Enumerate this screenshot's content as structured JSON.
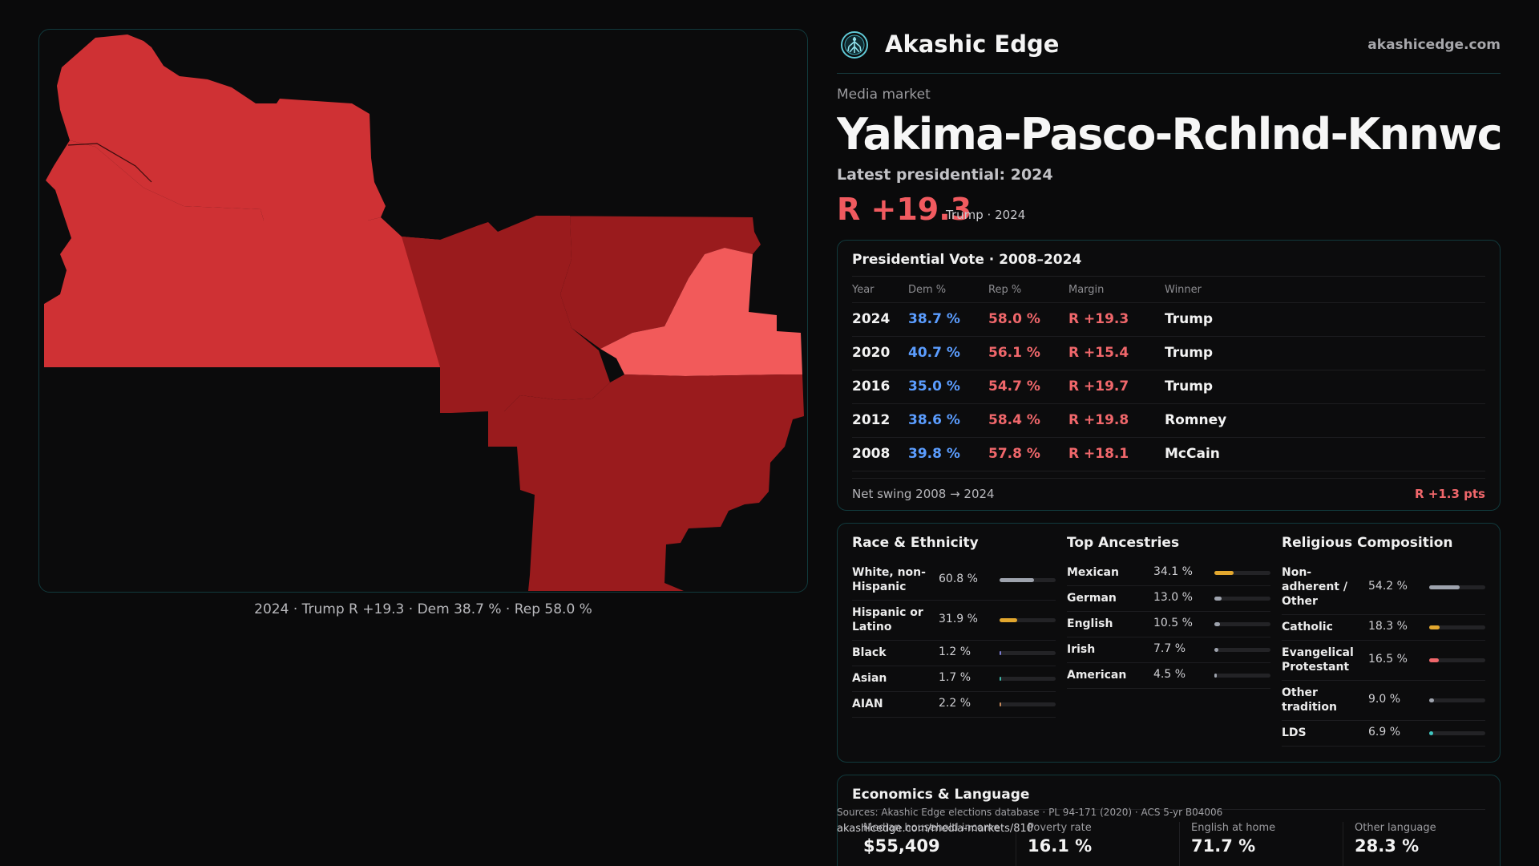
{
  "brand": {
    "name": "Akashic Edge",
    "url": "akashicedge.com",
    "logo_icon": "tree-of-life-icon"
  },
  "market": {
    "kicker": "Media market",
    "title": "Yakima-Pasco-Rchlnd-Knnwck",
    "latest_label": "Latest presidential: 2024",
    "headline_margin": "R +19.3",
    "headline_sub": "Trump · 2024"
  },
  "map": {
    "caption": "2024 · Trump R +19.3 · Dem 38.7 % · Rep 58.0 %",
    "colors": {
      "light": "#f25a5a",
      "mid": "#cf3134",
      "dark": "#9a1b1d"
    }
  },
  "vote": {
    "title": "Presidential Vote · 2008–2024",
    "headers": {
      "year": "Year",
      "dem": "Dem %",
      "rep": "Rep %",
      "margin": "Margin",
      "winner": "Winner"
    },
    "rows": [
      {
        "year": "2024",
        "dem": "38.7 %",
        "rep": "58.0 %",
        "margin": "R +19.3",
        "winner": "Trump"
      },
      {
        "year": "2020",
        "dem": "40.7 %",
        "rep": "56.1 %",
        "margin": "R +15.4",
        "winner": "Trump"
      },
      {
        "year": "2016",
        "dem": "35.0 %",
        "rep": "54.7 %",
        "margin": "R +19.7",
        "winner": "Trump"
      },
      {
        "year": "2012",
        "dem": "38.6 %",
        "rep": "58.4 %",
        "margin": "R +19.8",
        "winner": "Romney"
      },
      {
        "year": "2008",
        "dem": "39.8 %",
        "rep": "57.8 %",
        "margin": "R +18.1",
        "winner": "McCain"
      }
    ],
    "swing_label": "Net swing 2008 → 2024",
    "swing_value": "R +1.3 pts"
  },
  "race": {
    "title": "Race & Ethnicity",
    "rows": [
      {
        "label": "White, non-Hispanic",
        "value": "60.8 %",
        "pct": 60.8,
        "color": "#9ea3ad"
      },
      {
        "label": "Hispanic or Latino",
        "value": "31.9 %",
        "pct": 31.9,
        "color": "#e2a72e"
      },
      {
        "label": "Black",
        "value": "1.2 %",
        "pct": 1.2,
        "color": "#7b7bd0"
      },
      {
        "label": "Asian",
        "value": "1.7 %",
        "pct": 1.7,
        "color": "#3fb6a8"
      },
      {
        "label": "AIAN",
        "value": "2.2 %",
        "pct": 2.2,
        "color": "#c88a5a"
      }
    ]
  },
  "ancestry": {
    "title": "Top Ancestries",
    "rows": [
      {
        "label": "Mexican",
        "value": "34.1 %",
        "pct": 34.1,
        "color": "#e2a72e"
      },
      {
        "label": "German",
        "value": "13.0 %",
        "pct": 13.0,
        "color": "#9ea3ad"
      },
      {
        "label": "English",
        "value": "10.5 %",
        "pct": 10.5,
        "color": "#9ea3ad"
      },
      {
        "label": "Irish",
        "value": "7.7 %",
        "pct": 7.7,
        "color": "#9ea3ad"
      },
      {
        "label": "American",
        "value": "4.5 %",
        "pct": 4.5,
        "color": "#9ea3ad"
      }
    ]
  },
  "religion": {
    "title": "Religious Composition",
    "rows": [
      {
        "label": "Non-adherent / Other",
        "value": "54.2 %",
        "pct": 54.2,
        "color": "#9ea3ad"
      },
      {
        "label": "Catholic",
        "value": "18.3 %",
        "pct": 18.3,
        "color": "#e2a72e"
      },
      {
        "label": "Evangelical Protestant",
        "value": "16.5 %",
        "pct": 16.5,
        "color": "#f0676b"
      },
      {
        "label": "Other tradition",
        "value": "9.0 %",
        "pct": 9.0,
        "color": "#9ea3ad"
      },
      {
        "label": "LDS",
        "value": "6.9 %",
        "pct": 6.9,
        "color": "#3fc6c0"
      }
    ]
  },
  "econ": {
    "title": "Economics & Language",
    "cells": [
      {
        "label": "Median household income",
        "value": "$55,409"
      },
      {
        "label": "Poverty rate",
        "value": "16.1 %"
      },
      {
        "label": "English at home",
        "value": "71.7 %"
      },
      {
        "label": "Other language",
        "value": "28.3 %"
      }
    ]
  },
  "footer": {
    "sources": "Sources: Akashic Edge elections database · PL 94-171 (2020) · ACS 5-yr B04006",
    "url": "akashicedge.com/media-markets/810"
  }
}
